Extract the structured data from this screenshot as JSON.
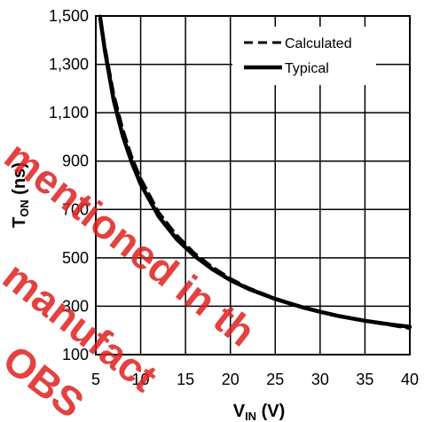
{
  "chart_data": {
    "type": "line",
    "xlabel": {
      "main": "V",
      "sub": "IN",
      "unit": " (V)"
    },
    "ylabel": {
      "main": "T",
      "sub": "ON",
      "unit": " (ns)"
    },
    "xlim": [
      5,
      40
    ],
    "ylim": [
      100,
      1500
    ],
    "x_ticks": [
      5,
      10,
      15,
      20,
      25,
      30,
      35,
      40
    ],
    "y_ticks": [
      100,
      300,
      500,
      700,
      900,
      1100,
      1300,
      1500
    ],
    "x_tick_labels": [
      "5",
      "10",
      "15",
      "20",
      "25",
      "30",
      "35",
      "40"
    ],
    "y_tick_labels": [
      "100",
      "300",
      "500",
      "700",
      "900",
      "1,100",
      "1,300",
      "1,500"
    ],
    "grid": true,
    "legend_position": "top-right",
    "series": [
      {
        "name": "Calculated",
        "style": "dashed",
        "color": "#000000",
        "x": [
          5.5,
          6,
          7,
          8,
          9,
          10,
          12,
          14,
          16,
          18,
          20,
          22,
          25,
          28,
          30,
          32,
          35,
          38,
          40
        ],
        "y": [
          1500,
          1380,
          1180,
          1035,
          920,
          830,
          690,
          595,
          520,
          463,
          415,
          377,
          333,
          298,
          278,
          260,
          238,
          220,
          208
        ]
      },
      {
        "name": "Typical",
        "style": "solid",
        "color": "#000000",
        "x": [
          5.5,
          6,
          7,
          8,
          9,
          10,
          12,
          14,
          16,
          18,
          20,
          22,
          25,
          28,
          30,
          32,
          35,
          38,
          40
        ],
        "y": [
          1490,
          1360,
          1150,
          1005,
          895,
          805,
          672,
          578,
          508,
          453,
          408,
          372,
          330,
          296,
          277,
          260,
          240,
          224,
          215
        ]
      }
    ]
  },
  "watermark": {
    "lines": [
      "mentioned in th",
      "manufact",
      "OBS"
    ],
    "color": "#e02020"
  }
}
